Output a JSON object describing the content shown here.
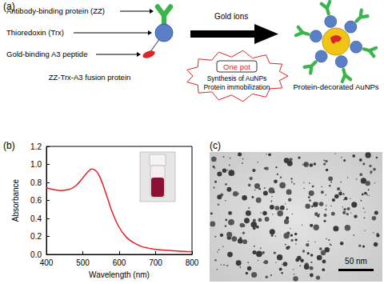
{
  "panel_a": {
    "label": "(a)",
    "components": [
      "Antibody-binding protein (ZZ)",
      "Thioredoxin (Trx)",
      "Gold-binding A3 peptide"
    ],
    "fusion_label": "ZZ-Trx-A3 fusion protein",
    "reagent": "Gold ions",
    "process": [
      "One pot",
      "Synthesis of AuNPs",
      "Protein immobilization"
    ],
    "product_label": "Protein-decorated AuNPs"
  },
  "chart_data": {
    "label": "(b)",
    "type": "line",
    "x_label": "Wavelength (nm)",
    "y_label": "Absorbance",
    "x": [
      400,
      420,
      440,
      460,
      480,
      500,
      510,
      520,
      525,
      530,
      540,
      550,
      560,
      570,
      580,
      600,
      620,
      640,
      660,
      680,
      700,
      750,
      800
    ],
    "values": [
      0.74,
      0.72,
      0.71,
      0.72,
      0.76,
      0.85,
      0.9,
      0.94,
      0.95,
      0.945,
      0.91,
      0.83,
      0.72,
      0.6,
      0.48,
      0.3,
      0.19,
      0.13,
      0.09,
      0.07,
      0.055,
      0.04,
      0.03
    ],
    "color": "#e41e26",
    "xlim": [
      400,
      800
    ],
    "xticks": [
      400,
      500,
      600,
      700,
      800
    ],
    "ylim": [
      0,
      1.2
    ],
    "yticks": [
      {
        "value": 0,
        "label": "0.0"
      },
      0.2,
      0.4,
      0.6,
      0.8,
      {
        "value": 1,
        "label": "1.0"
      },
      1.2
    ],
    "grid": false
  },
  "panel_c": {
    "label": "(c)",
    "scale_bar": "50 nm"
  }
}
